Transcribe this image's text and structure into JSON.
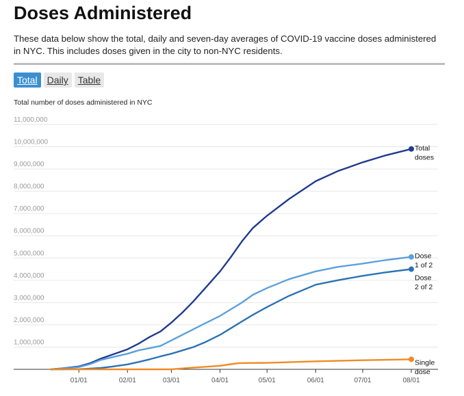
{
  "header": {
    "title": "Doses Administered",
    "subtitle": "These data below show the total, daily and seven-day averages of COVID-19 vaccine doses administered in NYC. This includes doses given in the city to non-NYC residents."
  },
  "tabs": [
    {
      "label": "Total",
      "active": true
    },
    {
      "label": "Daily",
      "active": false
    },
    {
      "label": "Table",
      "active": false
    }
  ],
  "chart_data": {
    "type": "line",
    "title": "Total number of doses administered in NYC",
    "ylim": [
      0,
      11000000
    ],
    "yticks": [
      "1,000,000",
      "2,000,000",
      "3,000,000",
      "4,000,000",
      "5,000,000",
      "6,000,000",
      "7,000,000",
      "8,000,000",
      "9,000,000",
      "10,000,000",
      "11,000,000"
    ],
    "ytick_values": [
      1000000,
      2000000,
      3000000,
      4000000,
      5000000,
      6000000,
      7000000,
      8000000,
      9000000,
      10000000,
      11000000
    ],
    "xticks": [
      "01/01",
      "02/01",
      "03/01",
      "04/01",
      "05/01",
      "06/01",
      "07/01",
      "08/01"
    ],
    "xtick_dates": [
      "2021-01-01",
      "2021-02-01",
      "2021-03-01",
      "2021-04-01",
      "2021-05-01",
      "2021-06-01",
      "2021-07-01",
      "2021-08-01"
    ],
    "xlim": [
      "2020-12-14",
      "2021-08-01"
    ],
    "grid": true,
    "legend": "end-of-line labels",
    "series": [
      {
        "name": "Total doses",
        "label_lines": [
          "Total",
          "doses"
        ],
        "color": "#1f3a8f",
        "x": [
          "2020-12-14",
          "2020-12-21",
          "2021-01-01",
          "2021-01-08",
          "2021-01-15",
          "2021-01-22",
          "2021-02-01",
          "2021-02-08",
          "2021-02-15",
          "2021-02-22",
          "2021-03-01",
          "2021-03-08",
          "2021-03-15",
          "2021-03-22",
          "2021-04-01",
          "2021-04-08",
          "2021-04-15",
          "2021-04-22",
          "2021-05-01",
          "2021-05-15",
          "2021-06-01",
          "2021-06-15",
          "2021-07-01",
          "2021-07-15",
          "2021-08-01"
        ],
        "y": [
          0,
          40000,
          130000,
          270000,
          480000,
          650000,
          900000,
          1150000,
          1450000,
          1700000,
          2100000,
          2550000,
          3050000,
          3600000,
          4400000,
          5050000,
          5750000,
          6350000,
          6900000,
          7650000,
          8450000,
          8900000,
          9300000,
          9600000,
          9900000
        ]
      },
      {
        "name": "Dose 1 of 2",
        "label_lines": [
          "Dose",
          "1 of 2"
        ],
        "color": "#5aa0dc",
        "x": [
          "2020-12-14",
          "2020-12-21",
          "2021-01-01",
          "2021-01-08",
          "2021-01-15",
          "2021-01-22",
          "2021-02-01",
          "2021-02-08",
          "2021-02-15",
          "2021-02-22",
          "2021-03-01",
          "2021-03-08",
          "2021-03-15",
          "2021-03-22",
          "2021-04-01",
          "2021-04-08",
          "2021-04-15",
          "2021-04-22",
          "2021-05-01",
          "2021-05-15",
          "2021-06-01",
          "2021-06-15",
          "2021-07-01",
          "2021-07-15",
          "2021-08-01"
        ],
        "y": [
          0,
          30000,
          100000,
          230000,
          420000,
          540000,
          700000,
          850000,
          950000,
          1050000,
          1300000,
          1550000,
          1800000,
          2050000,
          2400000,
          2700000,
          3000000,
          3350000,
          3650000,
          4050000,
          4400000,
          4600000,
          4750000,
          4900000,
          5050000
        ]
      },
      {
        "name": "Dose 2 of 2",
        "label_lines": [
          "Dose",
          "2 of 2"
        ],
        "color": "#2a72b4",
        "x": [
          "2020-12-14",
          "2020-12-21",
          "2021-01-01",
          "2021-01-08",
          "2021-01-15",
          "2021-01-22",
          "2021-02-01",
          "2021-02-08",
          "2021-02-15",
          "2021-02-22",
          "2021-03-01",
          "2021-03-08",
          "2021-03-15",
          "2021-03-22",
          "2021-04-01",
          "2021-04-08",
          "2021-04-15",
          "2021-04-22",
          "2021-05-01",
          "2021-05-15",
          "2021-06-01",
          "2021-06-15",
          "2021-07-01",
          "2021-07-15",
          "2021-08-01"
        ],
        "y": [
          0,
          0,
          10000,
          30000,
          60000,
          120000,
          220000,
          330000,
          450000,
          580000,
          700000,
          850000,
          1000000,
          1200000,
          1550000,
          1850000,
          2150000,
          2450000,
          2800000,
          3300000,
          3800000,
          4000000,
          4200000,
          4350000,
          4500000
        ]
      },
      {
        "name": "Single dose",
        "label_lines": [
          "Single",
          "dose"
        ],
        "color": "#f08a24",
        "x": [
          "2020-12-14",
          "2021-01-01",
          "2021-02-01",
          "2021-03-01",
          "2021-03-08",
          "2021-03-15",
          "2021-03-22",
          "2021-04-01",
          "2021-04-08",
          "2021-04-13",
          "2021-04-20",
          "2021-05-01",
          "2021-06-01",
          "2021-07-01",
          "2021-08-01"
        ],
        "y": [
          0,
          0,
          0,
          0,
          40000,
          80000,
          110000,
          160000,
          230000,
          280000,
          285000,
          290000,
          360000,
          410000,
          450000
        ]
      }
    ]
  }
}
